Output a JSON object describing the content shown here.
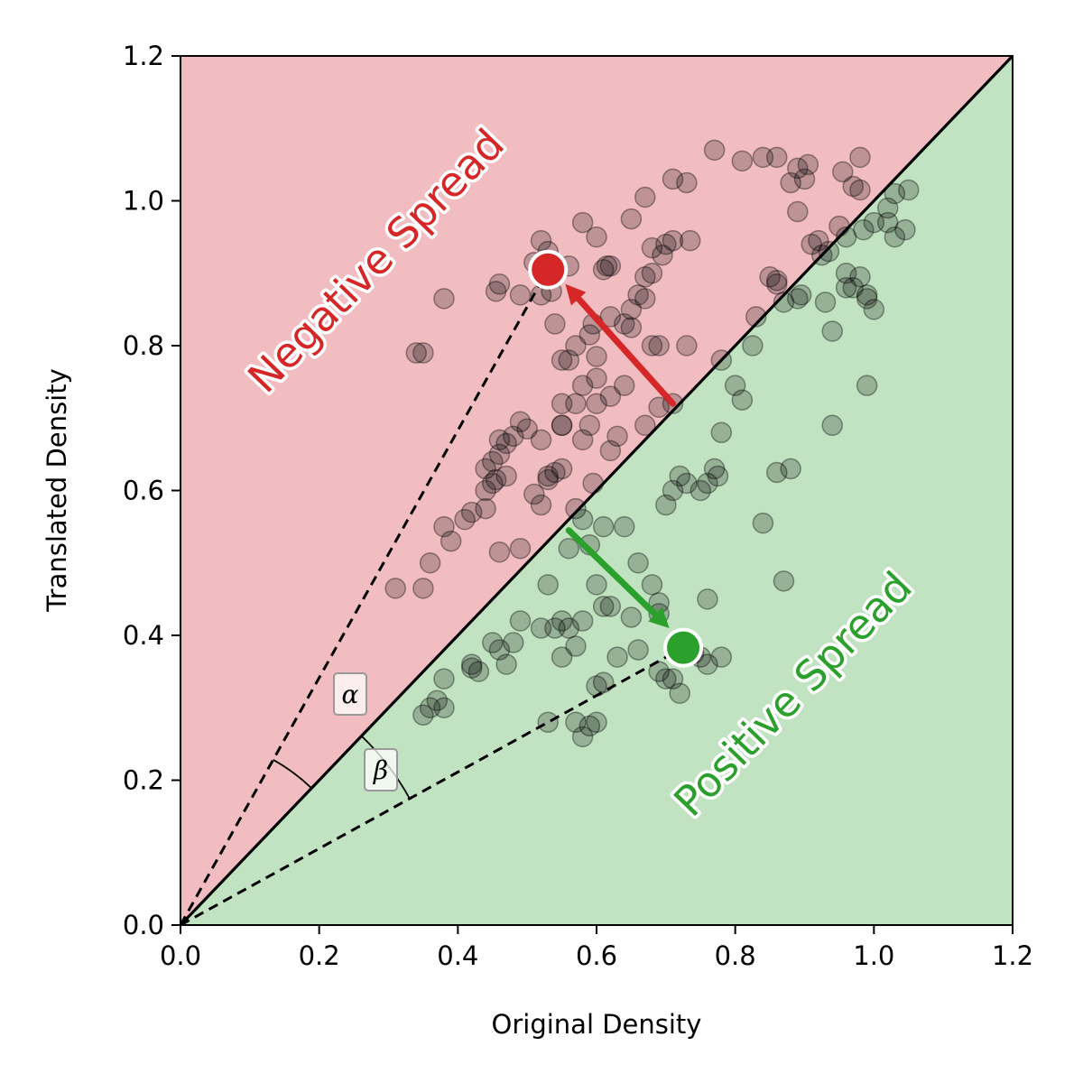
{
  "chart_data": {
    "type": "scatter",
    "xlabel": "Original Density",
    "ylabel": "Translated Density",
    "xlim": [
      0,
      1.2
    ],
    "ylim": [
      0,
      1.2
    ],
    "xticks": [
      "0.0",
      "0.2",
      "0.4",
      "0.6",
      "0.8",
      "1.0",
      "1.2"
    ],
    "yticks": [
      "0.0",
      "0.2",
      "0.4",
      "0.6",
      "0.8",
      "1.0",
      "1.2"
    ],
    "grid": false,
    "regions": {
      "upper": {
        "label": "Negative Spread",
        "fill": "#f2bdc0",
        "text_color": "#d62728"
      },
      "lower": {
        "label": "Positive Spread",
        "fill": "#c1e3c1",
        "text_color": "#2ca02c"
      }
    },
    "diagonal": {
      "from": [
        0,
        0
      ],
      "to": [
        1.2,
        1.2
      ]
    },
    "angle_labels": [
      {
        "label": "α",
        "ray_to": [
          0.53,
          0.905
        ]
      },
      {
        "label": "β",
        "ray_to": [
          0.725,
          0.383
        ]
      }
    ],
    "highlight_points": [
      {
        "x": 0.53,
        "y": 0.905,
        "color": "#d62728"
      },
      {
        "x": 0.725,
        "y": 0.383,
        "color": "#2ca02c"
      }
    ],
    "arrows": [
      {
        "from": [
          0.71,
          0.72
        ],
        "to": [
          0.555,
          0.885
        ],
        "color": "#d62728"
      },
      {
        "from": [
          0.56,
          0.545
        ],
        "to": [
          0.705,
          0.41
        ],
        "color": "#2ca02c"
      }
    ],
    "points": [
      [
        0.77,
        1.07
      ],
      [
        0.81,
        1.055
      ],
      [
        0.84,
        1.06
      ],
      [
        0.86,
        1.06
      ],
      [
        0.89,
        1.045
      ],
      [
        0.905,
        1.05
      ],
      [
        0.98,
        1.06
      ],
      [
        0.955,
        1.04
      ],
      [
        0.88,
        1.025
      ],
      [
        0.9,
        1.03
      ],
      [
        0.97,
        1.02
      ],
      [
        0.71,
        1.03
      ],
      [
        0.73,
        1.025
      ],
      [
        0.67,
        1.005
      ],
      [
        0.65,
        0.975
      ],
      [
        0.89,
        0.985
      ],
      [
        0.98,
        1.015
      ],
      [
        1.03,
        1.01
      ],
      [
        1.05,
        1.015
      ],
      [
        1.02,
        0.99
      ],
      [
        1.02,
        0.97
      ],
      [
        1.045,
        0.96
      ],
      [
        1.03,
        0.95
      ],
      [
        1.0,
        0.97
      ],
      [
        0.985,
        0.96
      ],
      [
        0.96,
        0.95
      ],
      [
        0.95,
        0.965
      ],
      [
        0.92,
        0.945
      ],
      [
        0.91,
        0.94
      ],
      [
        0.925,
        0.925
      ],
      [
        0.935,
        0.93
      ],
      [
        0.96,
        0.9
      ],
      [
        0.96,
        0.88
      ],
      [
        0.99,
        0.87
      ],
      [
        0.99,
        0.865
      ],
      [
        0.98,
        0.895
      ],
      [
        0.97,
        0.88
      ],
      [
        1.0,
        0.85
      ],
      [
        0.93,
        0.86
      ],
      [
        0.94,
        0.82
      ],
      [
        0.99,
        0.745
      ],
      [
        0.94,
        0.69
      ],
      [
        0.89,
        0.865
      ],
      [
        0.895,
        0.87
      ],
      [
        0.87,
        0.86
      ],
      [
        0.86,
        0.885
      ],
      [
        0.85,
        0.895
      ],
      [
        0.86,
        0.89
      ],
      [
        0.83,
        0.84
      ],
      [
        0.825,
        0.8
      ],
      [
        0.8,
        0.745
      ],
      [
        0.78,
        0.78
      ],
      [
        0.775,
        0.62
      ],
      [
        0.77,
        0.63
      ],
      [
        0.78,
        0.68
      ],
      [
        0.81,
        0.725
      ],
      [
        0.84,
        0.555
      ],
      [
        0.86,
        0.625
      ],
      [
        0.88,
        0.63
      ],
      [
        0.87,
        0.475
      ],
      [
        0.58,
        0.97
      ],
      [
        0.6,
        0.95
      ],
      [
        0.52,
        0.945
      ],
      [
        0.53,
        0.93
      ],
      [
        0.56,
        0.91
      ],
      [
        0.51,
        0.915
      ],
      [
        0.61,
        0.905
      ],
      [
        0.615,
        0.91
      ],
      [
        0.62,
        0.91
      ],
      [
        0.695,
        0.925
      ],
      [
        0.7,
        0.94
      ],
      [
        0.71,
        0.945
      ],
      [
        0.735,
        0.945
      ],
      [
        0.68,
        0.935
      ],
      [
        0.68,
        0.9
      ],
      [
        0.67,
        0.895
      ],
      [
        0.67,
        0.865
      ],
      [
        0.66,
        0.87
      ],
      [
        0.65,
        0.85
      ],
      [
        0.64,
        0.83
      ],
      [
        0.62,
        0.84
      ],
      [
        0.595,
        0.83
      ],
      [
        0.59,
        0.815
      ],
      [
        0.57,
        0.8
      ],
      [
        0.535,
        0.875
      ],
      [
        0.52,
        0.87
      ],
      [
        0.49,
        0.87
      ],
      [
        0.46,
        0.885
      ],
      [
        0.455,
        0.875
      ],
      [
        0.38,
        0.865
      ],
      [
        0.34,
        0.79
      ],
      [
        0.35,
        0.79
      ],
      [
        0.54,
        0.83
      ],
      [
        0.55,
        0.78
      ],
      [
        0.56,
        0.78
      ],
      [
        0.6,
        0.785
      ],
      [
        0.68,
        0.8
      ],
      [
        0.69,
        0.8
      ],
      [
        0.73,
        0.8
      ],
      [
        0.65,
        0.825
      ],
      [
        0.6,
        0.755
      ],
      [
        0.58,
        0.745
      ],
      [
        0.64,
        0.745
      ],
      [
        0.62,
        0.73
      ],
      [
        0.6,
        0.72
      ],
      [
        0.55,
        0.72
      ],
      [
        0.55,
        0.69
      ],
      [
        0.52,
        0.67
      ],
      [
        0.5,
        0.685
      ],
      [
        0.49,
        0.695
      ],
      [
        0.48,
        0.675
      ],
      [
        0.47,
        0.665
      ],
      [
        0.46,
        0.67
      ],
      [
        0.46,
        0.65
      ],
      [
        0.45,
        0.64
      ],
      [
        0.455,
        0.615
      ],
      [
        0.44,
        0.6
      ],
      [
        0.45,
        0.61
      ],
      [
        0.42,
        0.57
      ],
      [
        0.41,
        0.56
      ],
      [
        0.38,
        0.55
      ],
      [
        0.39,
        0.53
      ],
      [
        0.36,
        0.5
      ],
      [
        0.31,
        0.465
      ],
      [
        0.35,
        0.465
      ],
      [
        0.44,
        0.63
      ],
      [
        0.47,
        0.62
      ],
      [
        0.53,
        0.615
      ],
      [
        0.58,
        0.67
      ],
      [
        0.59,
        0.69
      ],
      [
        0.62,
        0.655
      ],
      [
        0.63,
        0.675
      ],
      [
        0.67,
        0.69
      ],
      [
        0.69,
        0.715
      ],
      [
        0.71,
        0.72
      ],
      [
        0.55,
        0.63
      ],
      [
        0.54,
        0.625
      ],
      [
        0.55,
        0.69
      ],
      [
        0.57,
        0.72
      ],
      [
        0.595,
        0.61
      ],
      [
        0.49,
        0.52
      ],
      [
        0.46,
        0.515
      ],
      [
        0.52,
        0.58
      ],
      [
        0.51,
        0.595
      ],
      [
        0.53,
        0.62
      ],
      [
        0.44,
        0.575
      ],
      [
        0.57,
        0.575
      ],
      [
        0.58,
        0.56
      ],
      [
        0.61,
        0.55
      ],
      [
        0.64,
        0.55
      ],
      [
        0.56,
        0.52
      ],
      [
        0.59,
        0.525
      ],
      [
        0.6,
        0.47
      ],
      [
        0.61,
        0.44
      ],
      [
        0.53,
        0.47
      ],
      [
        0.52,
        0.41
      ],
      [
        0.49,
        0.42
      ],
      [
        0.48,
        0.39
      ],
      [
        0.45,
        0.39
      ],
      [
        0.46,
        0.38
      ],
      [
        0.47,
        0.36
      ],
      [
        0.42,
        0.36
      ],
      [
        0.42,
        0.355
      ],
      [
        0.43,
        0.35
      ],
      [
        0.38,
        0.34
      ],
      [
        0.37,
        0.31
      ],
      [
        0.35,
        0.29
      ],
      [
        0.36,
        0.3
      ],
      [
        0.38,
        0.3
      ],
      [
        0.54,
        0.41
      ],
      [
        0.56,
        0.41
      ],
      [
        0.55,
        0.42
      ],
      [
        0.55,
        0.37
      ],
      [
        0.57,
        0.385
      ],
      [
        0.58,
        0.42
      ],
      [
        0.61,
        0.335
      ],
      [
        0.6,
        0.33
      ],
      [
        0.57,
        0.28
      ],
      [
        0.59,
        0.275
      ],
      [
        0.6,
        0.28
      ],
      [
        0.58,
        0.26
      ],
      [
        0.53,
        0.28
      ],
      [
        0.63,
        0.37
      ],
      [
        0.66,
        0.38
      ],
      [
        0.69,
        0.35
      ],
      [
        0.7,
        0.34
      ],
      [
        0.71,
        0.34
      ],
      [
        0.72,
        0.32
      ],
      [
        0.76,
        0.45
      ],
      [
        0.78,
        0.37
      ],
      [
        0.76,
        0.36
      ],
      [
        0.75,
        0.37
      ],
      [
        0.74,
        0.375
      ],
      [
        0.65,
        0.425
      ],
      [
        0.62,
        0.44
      ],
      [
        0.69,
        0.445
      ],
      [
        0.7,
        0.58
      ],
      [
        0.71,
        0.6
      ],
      [
        0.72,
        0.62
      ],
      [
        0.73,
        0.61
      ],
      [
        0.75,
        0.6
      ],
      [
        0.76,
        0.61
      ],
      [
        0.66,
        0.5
      ],
      [
        0.68,
        0.47
      ],
      [
        0.69,
        0.43
      ]
    ]
  }
}
